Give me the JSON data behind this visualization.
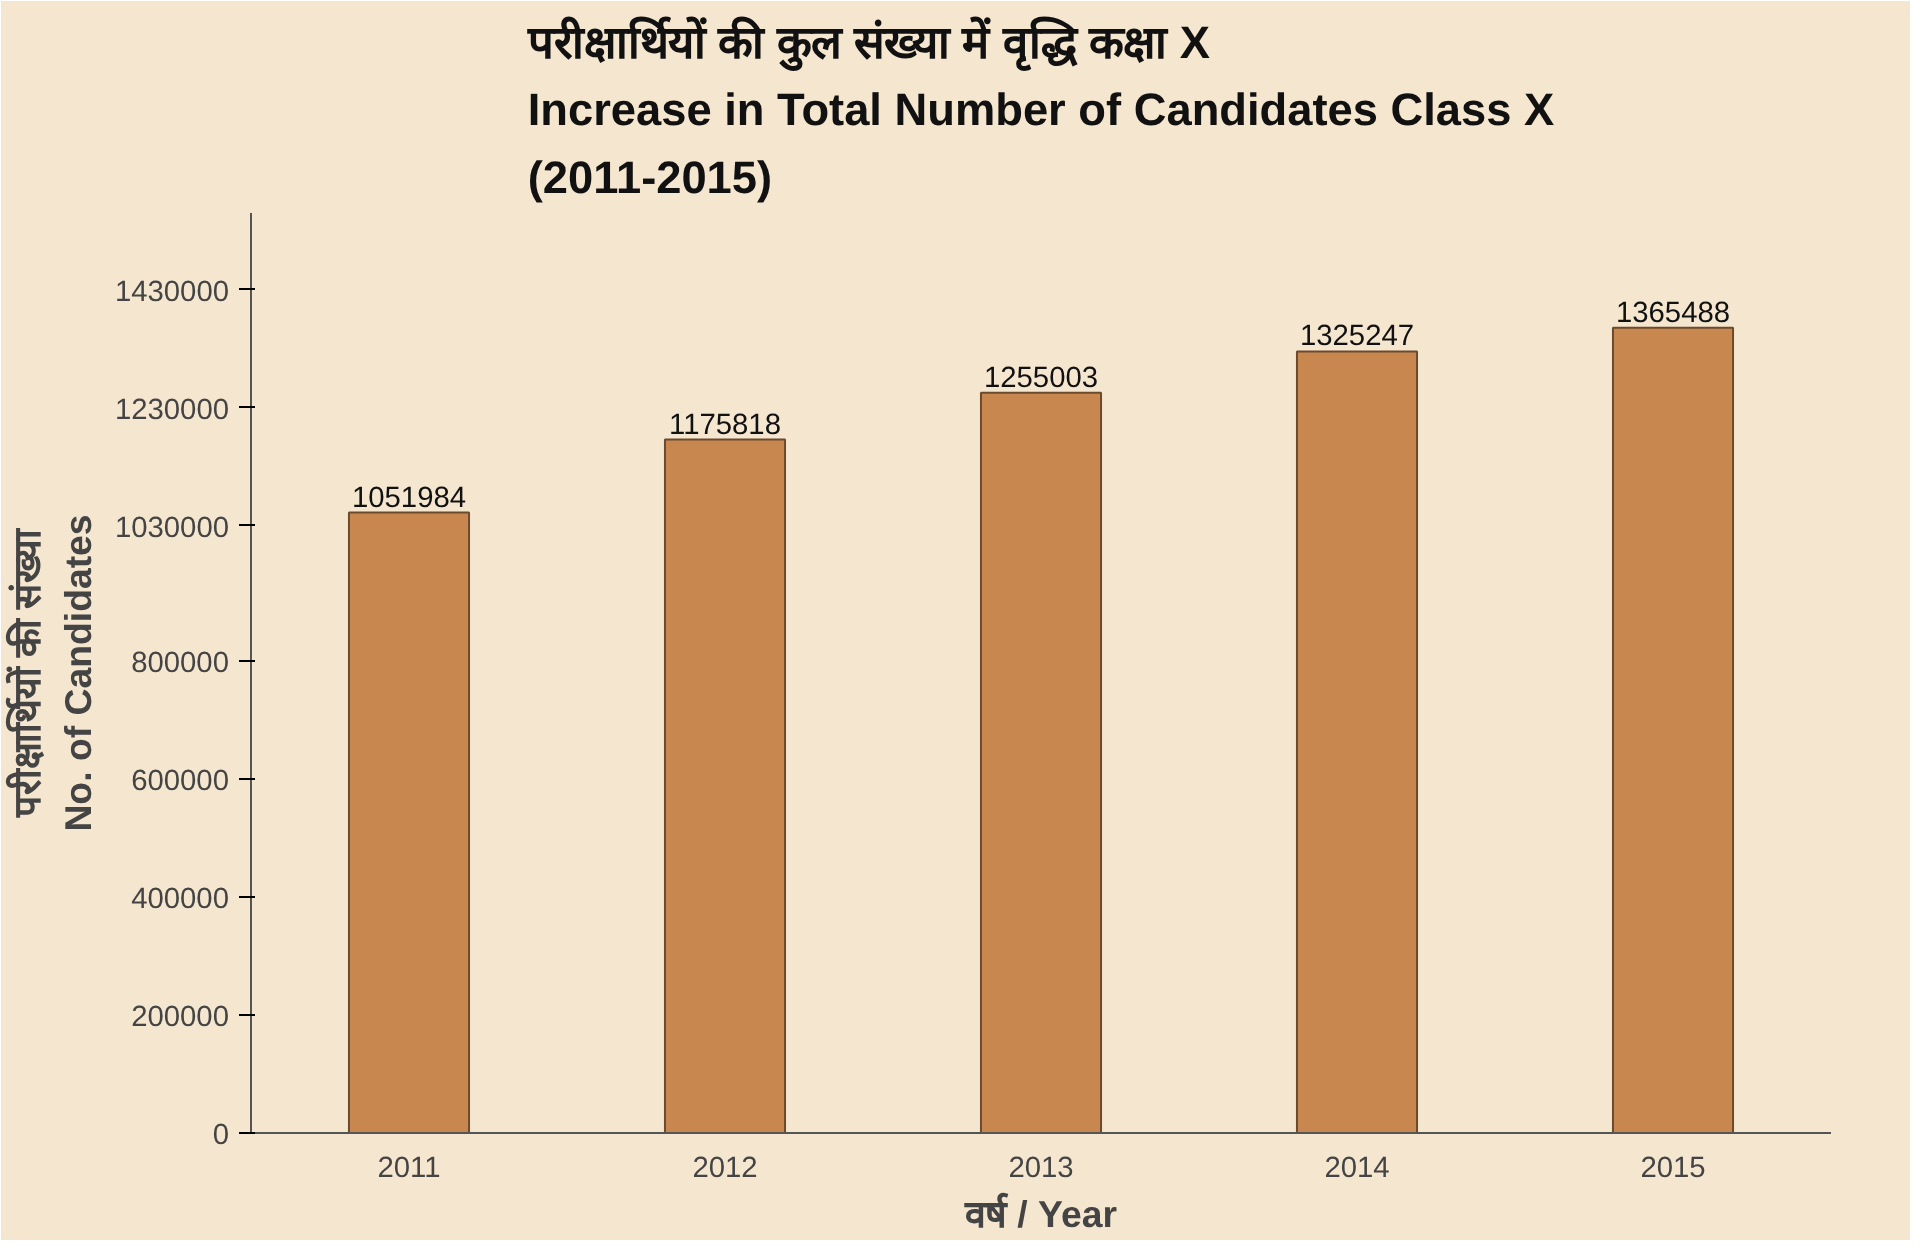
{
  "chart_data": {
    "type": "bar",
    "title": "परीक्षार्थियों की कुल संख्या में वृद्धि कक्षा X\nIncrease in Total Number of Candidates Class X\n(2011-2015)",
    "xlabel": "वर्ष / Year",
    "ylabel": "परीक्षार्थियों की संख्या\nNo. of Candidates",
    "categories": [
      "2011",
      "2012",
      "2013",
      "2014",
      "2015"
    ],
    "values": [
      1051984,
      1175818,
      1255003,
      1325247,
      1365488
    ],
    "color": "#c8874f",
    "data_labels": true,
    "grid": false,
    "ylim": [
      0,
      1560000
    ],
    "yticks": [
      0,
      200000,
      400000,
      600000,
      800000,
      1030000,
      1230000,
      1430000
    ]
  }
}
